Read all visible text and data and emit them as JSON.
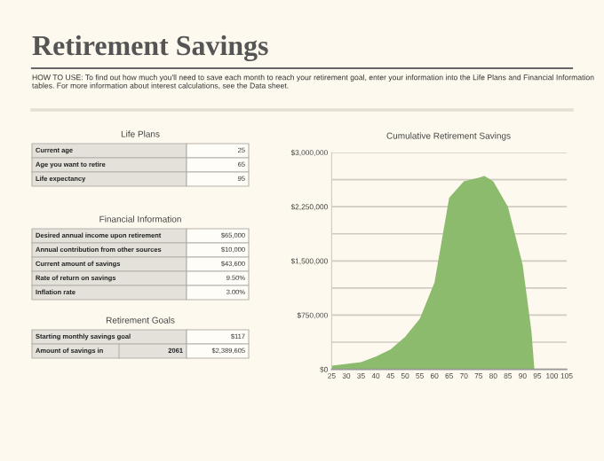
{
  "chart_data": [
    {
      "type": "other",
      "title": "Retirement Savings",
      "subtitle": "HOW TO USE: To find out how much you'll need to save each month to reach your retirement goal, enter your information into the Life Plans and Financial Information tables. For more information about interest calculations, see the Data sheet."
    },
    {
      "type": "other",
      "title": "Life Plans",
      "categories": [
        "Current age",
        "Age you want to retire",
        "Life expectancy"
      ],
      "annotations": [
        "25",
        "65",
        "95"
      ]
    },
    {
      "type": "other",
      "title": "Financial Information",
      "categories": [
        "Desired annual income upon retirement",
        "Annual contribution from other sources",
        "Current amount of savings",
        "Rate of return on savings",
        "Inflation rate"
      ],
      "annotations": [
        "$65,000",
        "$10,000",
        "$43,600",
        "9.50%",
        "3.00%"
      ]
    },
    {
      "type": "other",
      "title": "Retirement Goals",
      "categories": [
        "Starting monthly savings goal",
        "Amount of savings in"
      ],
      "annotations": [
        "$117",
        "2061",
        "$2,389,605"
      ]
    },
    {
      "type": "area",
      "title": "Cumulative Retirement Savings",
      "color": "#8dbb6d",
      "x": [
        25,
        30,
        35,
        40,
        45,
        50,
        55,
        60,
        65,
        70,
        75,
        77,
        80,
        85,
        90,
        93,
        94,
        95,
        100,
        105
      ],
      "values": [
        50000,
        75000,
        100000,
        175000,
        275000,
        450000,
        700000,
        1200000,
        2375000,
        2600000,
        2650000,
        2675000,
        2600000,
        2250000,
        1450000,
        525000,
        0,
        0,
        0,
        0
      ],
      "xlim": [
        25,
        105
      ],
      "xticks": [
        25,
        30,
        35,
        40,
        45,
        50,
        55,
        60,
        65,
        70,
        75,
        80,
        85,
        90,
        95,
        100,
        105
      ],
      "ylim": [
        0,
        3000000
      ],
      "yticks": [
        {
          "value": 0,
          "label": "$0"
        },
        {
          "value": 375000,
          "label": null
        },
        {
          "value": 750000,
          "label": "$750,000"
        },
        {
          "value": 1125000,
          "label": null
        },
        {
          "value": 1500000,
          "label": "$1,500,000"
        },
        {
          "value": 1875000,
          "label": null
        },
        {
          "value": 2250000,
          "label": "$2,250,000"
        },
        {
          "value": 2625000,
          "label": null
        },
        {
          "value": 3000000,
          "label": "$3,000,000"
        }
      ],
      "grid": "y"
    }
  ]
}
